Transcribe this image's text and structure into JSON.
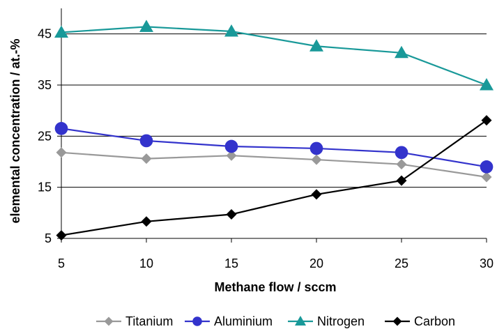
{
  "chart_data": {
    "type": "line",
    "xlabel": "Methane flow / sccm",
    "ylabel": "elemental concentration / at.-%",
    "x": [
      5,
      10,
      15,
      20,
      25,
      30
    ],
    "x_ticks": [
      "5",
      "10",
      "15",
      "20",
      "25",
      "30"
    ],
    "y_ticks": [
      "5",
      "15",
      "25",
      "35",
      "45"
    ],
    "ylim": [
      5,
      50
    ],
    "grid": "horizontal",
    "legend_position": "bottom",
    "series": [
      {
        "name": "Titanium",
        "marker": "diamond",
        "color": "#999999",
        "values": [
          21.8,
          20.6,
          21.2,
          20.4,
          19.5,
          17.0
        ]
      },
      {
        "name": "Aluminium",
        "marker": "circle",
        "color": "#3333cc",
        "values": [
          26.5,
          24.1,
          23.0,
          22.6,
          21.8,
          19.0
        ]
      },
      {
        "name": "Nitrogen",
        "marker": "triangle",
        "color": "#199999",
        "values": [
          45.3,
          46.4,
          45.5,
          42.6,
          41.3,
          35.0
        ]
      },
      {
        "name": "Carbon",
        "marker": "diamond",
        "color": "#000000",
        "values": [
          5.6,
          8.3,
          9.7,
          13.6,
          16.3,
          28.1
        ]
      }
    ]
  }
}
